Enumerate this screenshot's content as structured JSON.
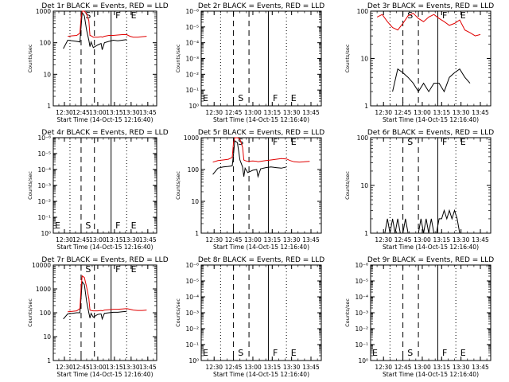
{
  "figure": {
    "xlabel": "Start Time (14-Oct-15 12:16:40)",
    "ylabel": "Counts/sec",
    "event_color": "#000000",
    "lld_color": "#e00000",
    "xticks": [
      "12:30",
      "12:45",
      "13:00",
      "13:15",
      "13:30",
      "13:45"
    ]
  },
  "chart_data": [
    {
      "title": "Det 1r  BLACK = Events, RED = LLD",
      "type": "line",
      "scale": "log",
      "ylim": [
        1,
        1000
      ],
      "yticks": [
        "1",
        "10",
        "100",
        "1000"
      ],
      "markers": {
        "S": "S",
        "F": "F",
        "E": "E"
      },
      "x": [
        "12:29",
        "12:33",
        "12:37",
        "12:41",
        "12:44",
        "12:45",
        "12:46",
        "12:48",
        "12:50",
        "12:52",
        "12:53",
        "12:54",
        "12:56",
        "13:00",
        "13:03",
        "13:04",
        "13:06",
        "13:10",
        "13:14",
        "13:18",
        "13:22",
        "13:26",
        "13:29",
        "13:32",
        "13:36",
        "13:40",
        "13:44"
      ],
      "series": [
        {
          "name": "BLACK = Events",
          "values": [
            65,
            120,
            115,
            110,
            105,
            300,
            900,
            700,
            250,
            120,
            75,
            105,
            70,
            85,
            95,
            60,
            100,
            110,
            120,
            115,
            120,
            125,
            null,
            null,
            null,
            null,
            null
          ]
        },
        {
          "name": "RED = LLD",
          "values": [
            null,
            160,
            165,
            170,
            200,
            600,
            1000,
            1000,
            800,
            500,
            170,
            165,
            150,
            150,
            155,
            150,
            160,
            170,
            170,
            175,
            180,
            180,
            160,
            150,
            150,
            155,
            160
          ]
        }
      ]
    },
    {
      "title": "Det 2r  BLACK = Events, RED = LLD",
      "type": "line",
      "scale": "log",
      "ylim": [
        1,
        1e-06
      ],
      "yticks": [
        "10^0",
        "10^-1",
        "10^-2",
        "10^-3",
        "10^-4",
        "10^-5",
        "10^-6"
      ],
      "markers": {
        "S": "S",
        "F": "F",
        "E": "E"
      },
      "x": [],
      "series": []
    },
    {
      "title": "Det 3r  BLACK = Events, RED = LLD",
      "type": "line",
      "scale": "log",
      "ylim": [
        1,
        100
      ],
      "yticks": [
        "1",
        "10",
        "100"
      ],
      "markers": {
        "S": "S",
        "F": "F",
        "E": "E"
      },
      "x": [
        "12:25",
        "12:29",
        "12:33",
        "12:37",
        "12:41",
        "12:45",
        "12:49",
        "12:53",
        "12:57",
        "13:01",
        "13:05",
        "13:09",
        "13:13",
        "13:17",
        "13:21",
        "13:25",
        "13:29",
        "13:33",
        "13:37",
        "13:41",
        "13:45"
      ],
      "series": [
        {
          "name": "BLACK = Events",
          "values": [
            null,
            null,
            null,
            2,
            6,
            5,
            4,
            3,
            2,
            3,
            2,
            3,
            3,
            2,
            4,
            5,
            6,
            4,
            3,
            null,
            null
          ]
        },
        {
          "name": "RED = LLD",
          "values": [
            75,
            85,
            60,
            45,
            40,
            55,
            80,
            90,
            70,
            60,
            75,
            85,
            70,
            60,
            50,
            55,
            65,
            40,
            35,
            30,
            32
          ]
        }
      ]
    },
    {
      "title": "Det 4r  BLACK = Events, RED = LLD",
      "type": "line",
      "scale": "log",
      "ylim": [
        1,
        1e-06
      ],
      "yticks": [
        "10^0",
        "10^-1",
        "10^-2",
        "10^-3",
        "10^-4",
        "10^-5",
        "10^-6"
      ],
      "markers": {
        "S": "S",
        "F": "F",
        "E": "E"
      },
      "x": [],
      "series": []
    },
    {
      "title": "Det 5r  BLACK = Events, RED = LLD",
      "type": "line",
      "scale": "log",
      "ylim": [
        1,
        1000
      ],
      "yticks": [
        "1",
        "10",
        "100",
        "1000"
      ],
      "markers": {
        "S": "S",
        "F": "F",
        "E": "E"
      },
      "x": [
        "12:29",
        "12:33",
        "12:37",
        "12:41",
        "12:44",
        "12:45",
        "12:46",
        "12:48",
        "12:50",
        "12:52",
        "12:53",
        "12:54",
        "12:56",
        "13:00",
        "13:03",
        "13:04",
        "13:06",
        "13:10",
        "13:14",
        "13:18",
        "13:22",
        "13:26",
        "13:29",
        "13:32",
        "13:36",
        "13:40",
        "13:44"
      ],
      "series": [
        {
          "name": "BLACK = Events",
          "values": [
            70,
            110,
            120,
            125,
            130,
            300,
            800,
            700,
            200,
            120,
            60,
            110,
            80,
            95,
            100,
            60,
            105,
            115,
            120,
            115,
            110,
            120,
            null,
            null,
            null,
            null,
            null
          ]
        },
        {
          "name": "RED = LLD",
          "values": [
            170,
            190,
            200,
            210,
            240,
            700,
            1000,
            1000,
            900,
            500,
            200,
            190,
            180,
            185,
            180,
            175,
            180,
            190,
            200,
            210,
            220,
            215,
            190,
            175,
            170,
            175,
            180
          ]
        }
      ]
    },
    {
      "title": "Det 6r  BLACK = Events, RED = LLD",
      "type": "line",
      "scale": "log",
      "ylim": [
        1,
        100
      ],
      "yticks": [
        "1",
        "10",
        "100"
      ],
      "markers": {
        "S": "S",
        "F": "F",
        "E": "E"
      },
      "x": [
        "12:29",
        "12:31",
        "12:33",
        "12:35",
        "12:37",
        "12:39",
        "12:41",
        "12:43",
        "12:45",
        "12:47",
        "12:49",
        "12:51",
        "12:53",
        "12:55",
        "12:57",
        "12:59",
        "13:01",
        "13:03",
        "13:05",
        "13:07",
        "13:09",
        "13:11",
        "13:13",
        "13:15",
        "13:17",
        "13:19",
        "13:21",
        "13:23",
        "13:25",
        "13:27",
        "13:29"
      ],
      "series": [
        {
          "name": "BLACK = Events",
          "values": [
            1,
            1,
            2,
            1,
            2,
            1,
            2,
            1,
            1,
            2,
            1,
            1,
            1,
            1,
            1,
            2,
            1,
            2,
            1,
            2,
            1,
            1,
            2,
            2,
            3,
            2,
            3,
            2,
            3,
            2,
            1
          ]
        }
      ]
    },
    {
      "title": "Det 7r  BLACK = Events, RED = LLD",
      "type": "line",
      "scale": "log",
      "ylim": [
        1,
        10000
      ],
      "yticks": [
        "1",
        "10",
        "100",
        "1000",
        "10000"
      ],
      "markers": {
        "S": "S",
        "F": "F",
        "E": "E"
      },
      "x": [
        "12:29",
        "12:33",
        "12:37",
        "12:41",
        "12:44",
        "12:45",
        "12:46",
        "12:48",
        "12:50",
        "12:52",
        "12:53",
        "12:54",
        "12:56",
        "13:00",
        "13:03",
        "13:04",
        "13:06",
        "13:10",
        "13:14",
        "13:18",
        "13:22",
        "13:26",
        "13:29",
        "13:32",
        "13:36",
        "13:40",
        "13:44"
      ],
      "series": [
        {
          "name": "BLACK = Events",
          "values": [
            55,
            90,
            95,
            100,
            100,
            400,
            2000,
            1500,
            300,
            100,
            60,
            95,
            65,
            85,
            90,
            55,
            95,
            100,
            105,
            105,
            110,
            115,
            null,
            null,
            null,
            null,
            null
          ]
        },
        {
          "name": "RED = LLD",
          "values": [
            null,
            110,
            115,
            120,
            150,
            1000,
            3500,
            3000,
            1200,
            400,
            130,
            125,
            120,
            120,
            125,
            120,
            130,
            135,
            140,
            140,
            145,
            150,
            140,
            130,
            125,
            125,
            130
          ]
        }
      ]
    },
    {
      "title": "Det 8r  BLACK = Events, RED = LLD",
      "type": "line",
      "scale": "log",
      "ylim": [
        1,
        1e-06
      ],
      "yticks": [
        "10^0",
        "10^-1",
        "10^-2",
        "10^-3",
        "10^-4",
        "10^-5",
        "10^-6"
      ],
      "markers": {
        "S": "S",
        "F": "F",
        "E": "E"
      },
      "x": [],
      "series": []
    },
    {
      "title": "Det 9r  BLACK = Events, RED = LLD",
      "type": "line",
      "scale": "log",
      "ylim": [
        1,
        1e-06
      ],
      "yticks": [
        "10^0",
        "10^-1",
        "10^-2",
        "10^-3",
        "10^-4",
        "10^-5",
        "10^-6"
      ],
      "markers": {
        "S": "S",
        "F": "F",
        "E": "E"
      },
      "x": [],
      "series": []
    }
  ]
}
